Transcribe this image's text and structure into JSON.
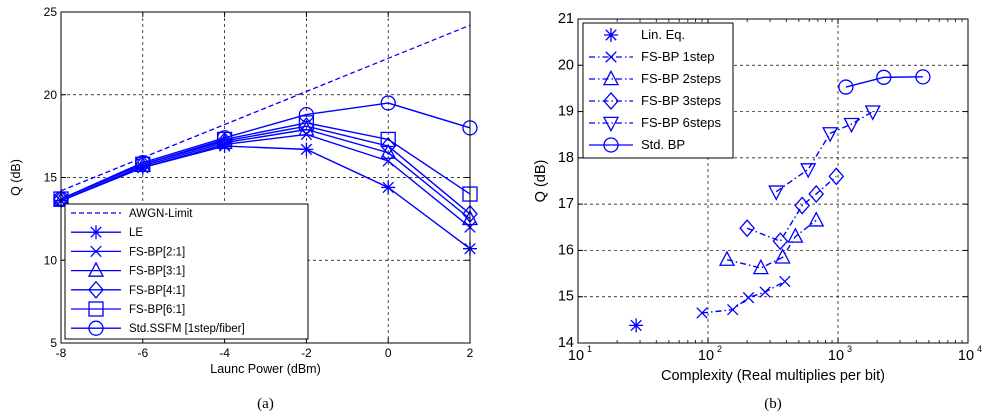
{
  "chart_data": [
    {
      "type": "line",
      "caption": "(a)",
      "xlabel": "Launc Power (dBm)",
      "ylabel": "Q (dB)",
      "xlim": [
        -8,
        2
      ],
      "ylim": [
        5,
        25
      ],
      "xticks": [
        -8,
        -6,
        -4,
        -2,
        0,
        2
      ],
      "yticks": [
        5,
        10,
        15,
        20,
        25
      ],
      "grid": "dashed",
      "legend_position": "bottom-left",
      "line_color": "#0000ff",
      "series": [
        {
          "name": "AWGN-Limit",
          "marker": "none",
          "style": "dashed",
          "x": [
            -8,
            2
          ],
          "y": [
            14.2,
            24.2
          ]
        },
        {
          "name": "LE",
          "marker": "asterisk",
          "style": "solid",
          "x": [
            -8,
            -6,
            -4,
            -2,
            0,
            2
          ],
          "y": [
            13.6,
            15.6,
            16.9,
            16.7,
            14.4,
            10.7
          ]
        },
        {
          "name": "FS-BP[2:1]",
          "marker": "x",
          "style": "solid",
          "x": [
            -8,
            -6,
            -4,
            -2,
            0,
            2
          ],
          "y": [
            13.6,
            15.6,
            17.0,
            17.6,
            16.0,
            12.0
          ]
        },
        {
          "name": "FS-BP[3:1]",
          "marker": "triangle-up",
          "style": "solid",
          "x": [
            -8,
            -6,
            -4,
            -2,
            0,
            2
          ],
          "y": [
            13.6,
            15.7,
            17.1,
            17.9,
            16.5,
            12.5
          ]
        },
        {
          "name": "FS-BP[4:1]",
          "marker": "diamond",
          "style": "solid",
          "x": [
            -8,
            -6,
            -4,
            -2,
            0,
            2
          ],
          "y": [
            13.7,
            15.8,
            17.2,
            18.1,
            16.9,
            12.8
          ]
        },
        {
          "name": "FS-BP[6:1]",
          "marker": "square",
          "style": "solid",
          "x": [
            -8,
            -6,
            -4,
            -2,
            0,
            2
          ],
          "y": [
            13.7,
            15.8,
            17.3,
            18.3,
            17.3,
            14.0
          ]
        },
        {
          "name": "Std.SSFM [1step/fiber]",
          "marker": "circle",
          "style": "solid",
          "x": [
            -8,
            -6,
            -4,
            -2,
            0,
            2
          ],
          "y": [
            13.7,
            15.9,
            17.4,
            18.8,
            19.5,
            18.0
          ]
        }
      ]
    },
    {
      "type": "scatter",
      "caption": "(b)",
      "xlabel": "Complexity (Real multiplies per bit)",
      "ylabel": "Q (dB)",
      "xscale": "log",
      "xlim": [
        10,
        10000
      ],
      "ylim": [
        14,
        21
      ],
      "xticks": [
        10,
        100,
        1000,
        10000
      ],
      "xticklabels": [
        "10",
        "10",
        "10",
        "10"
      ],
      "xtickexponents": [
        "1",
        "2",
        "3",
        "4"
      ],
      "yticks": [
        14,
        15,
        16,
        17,
        18,
        19,
        20,
        21
      ],
      "grid": "dashed",
      "legend_position": "top-left",
      "line_color": "#0000ff",
      "series": [
        {
          "name": "Lin. Eq.",
          "marker": "asterisk",
          "style": "none",
          "x": [
            28
          ],
          "y": [
            14.38
          ]
        },
        {
          "name": "FS-BP 1step",
          "marker": "x",
          "style": "dashdot",
          "x": [
            90,
            155,
            205,
            275,
            390
          ],
          "y": [
            14.65,
            14.72,
            14.98,
            15.1,
            15.33
          ]
        },
        {
          "name": "FS-BP 2steps",
          "marker": "triangle-up",
          "style": "dashdot",
          "x": [
            140,
            255,
            375,
            470,
            680
          ],
          "y": [
            15.8,
            15.62,
            15.85,
            16.3,
            16.65
          ]
        },
        {
          "name": "FS-BP 3steps",
          "marker": "diamond",
          "style": "dashdot",
          "x": [
            200,
            360,
            530,
            680,
            970
          ],
          "y": [
            16.48,
            16.2,
            16.97,
            17.22,
            17.6
          ]
        },
        {
          "name": "FS-BP 6steps",
          "marker": "triangle-down",
          "style": "dashdot",
          "x": [
            335,
            590,
            870,
            1270,
            1850
          ],
          "y": [
            17.27,
            17.75,
            18.53,
            18.73,
            19.0
          ]
        },
        {
          "name": "Std. BP",
          "marker": "circle",
          "style": "solid",
          "x": [
            1150,
            2250,
            4500
          ],
          "y": [
            19.53,
            19.74,
            19.75
          ]
        }
      ]
    }
  ]
}
